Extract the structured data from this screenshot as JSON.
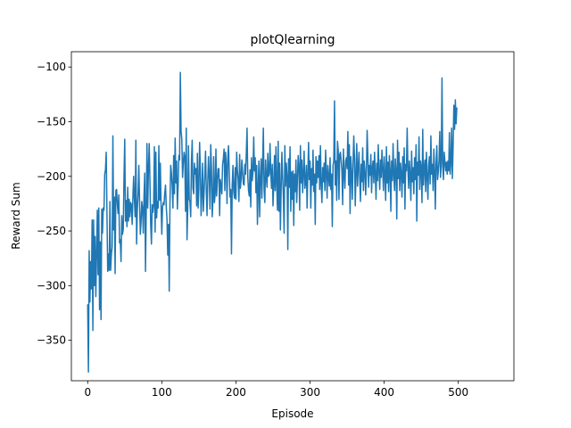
{
  "chart_data": {
    "type": "line",
    "title": "plotQlearning",
    "xlabel": "Episode",
    "ylabel": "Reward Sum",
    "xlim": [
      -22,
      575
    ],
    "ylim": [
      -387,
      -86
    ],
    "grid": false,
    "legend": "none",
    "x_ticks": [
      0,
      100,
      200,
      300,
      400,
      500
    ],
    "x_tick_labels": [
      "0",
      "100",
      "200",
      "300",
      "400",
      "500"
    ],
    "y_ticks": [
      -350,
      -300,
      -250,
      -200,
      -150,
      -100
    ],
    "y_tick_labels": [
      "−350",
      "−300",
      "−250",
      "−200",
      "−150",
      "−100"
    ],
    "series": [
      {
        "color": "#1f77b4",
        "x_start": 0,
        "x_step": 1,
        "values": [
          -317,
          -379,
          -268,
          -315,
          -278,
          -303,
          -240,
          -341,
          -240,
          -300,
          -255,
          -310,
          -271,
          -231,
          -290,
          -229,
          -322,
          -260,
          -331,
          -230,
          -252,
          -229,
          -231,
          -198,
          -194,
          -178,
          -233,
          -287,
          -271,
          -286,
          -223,
          -286,
          -271,
          -265,
          -163,
          -249,
          -219,
          -289,
          -213,
          -212,
          -226,
          -234,
          -217,
          -261,
          -258,
          -278,
          -236,
          -253,
          -248,
          -201,
          -166,
          -241,
          -222,
          -246,
          -210,
          -241,
          -221,
          -237,
          -224,
          -226,
          -244,
          -219,
          -200,
          -221,
          -237,
          -167,
          -262,
          -230,
          -216,
          -190,
          -223,
          -253,
          -242,
          -223,
          -229,
          -252,
          -218,
          -197,
          -287,
          -232,
          -170,
          -229,
          -193,
          -170,
          -204,
          -244,
          -262,
          -226,
          -233,
          -226,
          -173,
          -251,
          -178,
          -238,
          -223,
          -229,
          -172,
          -222,
          -188,
          -226,
          -253,
          -228,
          -224,
          -226,
          -215,
          -208,
          -228,
          -239,
          -272,
          -244,
          -305,
          -225,
          -190,
          -197,
          -209,
          -229,
          -181,
          -216,
          -165,
          -206,
          -186,
          -230,
          -208,
          -181,
          -185,
          -105,
          -159,
          -166,
          -201,
          -188,
          -178,
          -182,
          -232,
          -156,
          -258,
          -229,
          -172,
          -221,
          -223,
          -237,
          -187,
          -167,
          -211,
          -216,
          -188,
          -198,
          -193,
          -227,
          -179,
          -229,
          -211,
          -169,
          -194,
          -236,
          -216,
          -188,
          -232,
          -215,
          -198,
          -177,
          -212,
          -236,
          -205,
          -182,
          -200,
          -230,
          -171,
          -192,
          -237,
          -222,
          -182,
          -224,
          -216,
          -175,
          -218,
          -204,
          -193,
          -193,
          -236,
          -203,
          -209,
          -216,
          -189,
          -184,
          -175,
          -213,
          -178,
          -190,
          -225,
          -183,
          -172,
          -196,
          -219,
          -212,
          -271,
          -208,
          -190,
          -214,
          -220,
          -192,
          -221,
          -178,
          -195,
          -203,
          -223,
          -180,
          -211,
          -203,
          -185,
          -196,
          -207,
          -208,
          -189,
          -198,
          -179,
          -156,
          -201,
          -213,
          -218,
          -194,
          -228,
          -183,
          -204,
          -196,
          -164,
          -195,
          -183,
          -215,
          -190,
          -244,
          -211,
          -186,
          -237,
          -202,
          -184,
          -220,
          -188,
          -156,
          -212,
          -224,
          -185,
          -201,
          -210,
          -179,
          -200,
          -198,
          -170,
          -196,
          -211,
          -189,
          -227,
          -209,
          -181,
          -213,
          -173,
          -206,
          -231,
          -168,
          -232,
          -188,
          -249,
          -212,
          -178,
          -199,
          -218,
          -252,
          -172,
          -209,
          -188,
          -200,
          -267,
          -184,
          -210,
          -173,
          -232,
          -196,
          -221,
          -195,
          -245,
          -198,
          -214,
          -185,
          -224,
          -203,
          -181,
          -191,
          -231,
          -172,
          -206,
          -185,
          -215,
          -198,
          -177,
          -211,
          -206,
          -190,
          -229,
          -199,
          -169,
          -203,
          -186,
          -229,
          -193,
          -208,
          -176,
          -214,
          -198,
          -244,
          -182,
          -206,
          -186,
          -201,
          -181,
          -212,
          -172,
          -207,
          -224,
          -192,
          -205,
          -188,
          -213,
          -176,
          -197,
          -220,
          -190,
          -201,
          -209,
          -183,
          -212,
          -198,
          -246,
          -190,
          -186,
          -131,
          -208,
          -186,
          -222,
          -168,
          -176,
          -221,
          -180,
          -178,
          -186,
          -195,
          -226,
          -175,
          -198,
          -211,
          -186,
          -183,
          -193,
          -159,
          -208,
          -171,
          -234,
          -182,
          -196,
          -221,
          -188,
          -163,
          -184,
          -227,
          -197,
          -170,
          -209,
          -192,
          -178,
          -202,
          -223,
          -189,
          -205,
          -174,
          -213,
          -186,
          -194,
          -217,
          -197,
          -158,
          -182,
          -210,
          -190,
          -199,
          -180,
          -215,
          -192,
          -186,
          -206,
          -178,
          -197,
          -221,
          -188,
          -204,
          -171,
          -196,
          -212,
          -185,
          -201,
          -176,
          -194,
          -213,
          -182,
          -199,
          -222,
          -173,
          -206,
          -187,
          -214,
          -181,
          -195,
          -232,
          -186,
          -204,
          -170,
          -199,
          -213,
          -184,
          -195,
          -239,
          -167,
          -202,
          -178,
          -213,
          -188,
          -197,
          -219,
          -182,
          -206,
          -174,
          -230,
          -189,
          -195,
          -156,
          -192,
          -211,
          -186,
          -199,
          -222,
          -177,
          -205,
          -192,
          -216,
          -183,
          -203,
          -171,
          -241,
          -187,
          -199,
          -164,
          -212,
          -186,
          -192,
          -224,
          -157,
          -208,
          -193,
          -185,
          -214,
          -178,
          -200,
          -221,
          -190,
          -182,
          -207,
          -163,
          -198,
          -189,
          -213,
          -175,
          -194,
          -230,
          -188,
          -172,
          -203,
          -196,
          -185,
          -159,
          -201,
          -187,
          -110,
          -191,
          -203,
          -178,
          -187,
          -195,
          -187,
          -198,
          -186,
          -195,
          -160,
          -198,
          -187,
          -156,
          -202,
          -172,
          -135,
          -157,
          -130,
          -152,
          -137
        ]
      }
    ]
  }
}
